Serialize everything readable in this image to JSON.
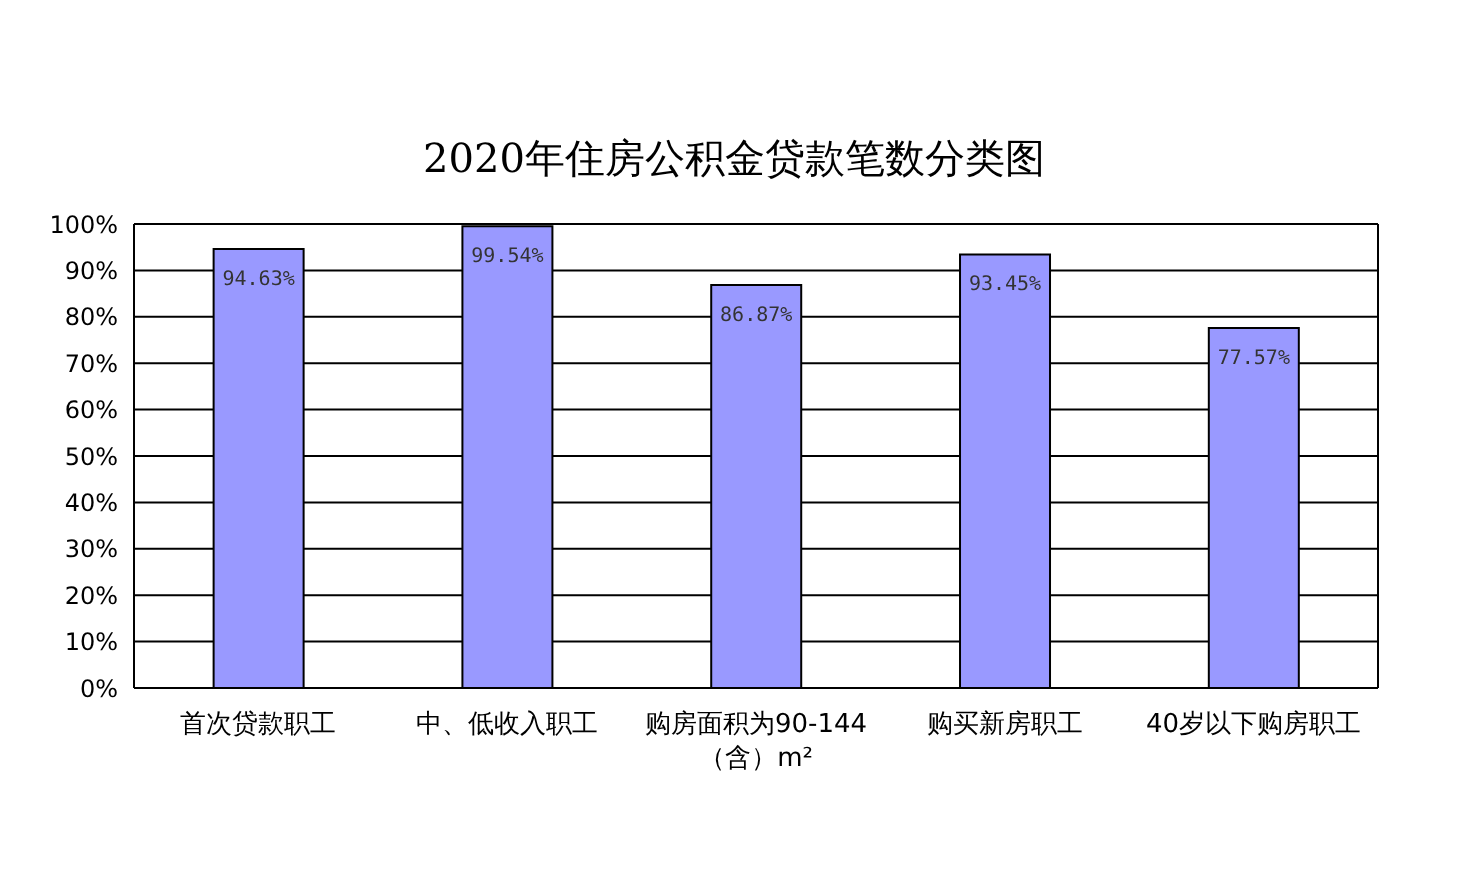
{
  "chart_data": {
    "type": "bar",
    "title": "2020年住房公积金贷款笔数分类图",
    "categories": [
      "首次贷款职工",
      "中、低收入职工",
      "购房面积为90-144（含）m²",
      "购买新房职工",
      "40岁以下购房职工"
    ],
    "values": [
      94.63,
      99.54,
      86.87,
      93.45,
      77.57
    ],
    "value_labels": [
      "94.63%",
      "99.54%",
      "86.87%",
      "93.45%",
      "77.57%"
    ],
    "color": "#9999ff",
    "ylim": [
      0,
      100
    ],
    "yticks": [
      {
        "value": 0,
        "label": "0%"
      },
      {
        "value": 10,
        "label": "10%"
      },
      {
        "value": 20,
        "label": "20%"
      },
      {
        "value": 30,
        "label": "30%"
      },
      {
        "value": 40,
        "label": "40%"
      },
      {
        "value": 50,
        "label": "50%"
      },
      {
        "value": 60,
        "label": "60%"
      },
      {
        "value": 70,
        "label": "70%"
      },
      {
        "value": 80,
        "label": "80%"
      },
      {
        "value": 90,
        "label": "90%"
      },
      {
        "value": 100,
        "label": "100%"
      }
    ],
    "grid": "y",
    "legend": false
  }
}
